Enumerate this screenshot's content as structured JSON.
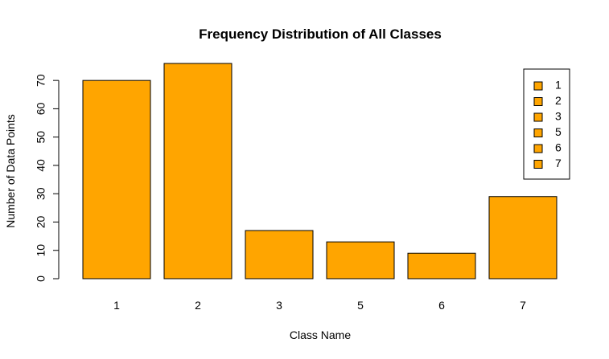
{
  "chart_data": {
    "type": "bar",
    "title": "Frequency Distribution of All Classes",
    "xlabel": "Class Name",
    "ylabel": "Number of Data Points",
    "categories": [
      "1",
      "2",
      "3",
      "5",
      "6",
      "7"
    ],
    "values": [
      70,
      76,
      17,
      13,
      9,
      29
    ],
    "ylim": [
      0,
      76
    ],
    "yticks": [
      0,
      10,
      20,
      30,
      40,
      50,
      60,
      70
    ],
    "grid": false,
    "legend": {
      "position": "top-right",
      "entries": [
        "1",
        "2",
        "3",
        "5",
        "6",
        "7"
      ]
    },
    "colors": {
      "bar_fill": "#FFA500",
      "bar_stroke": "#000000"
    }
  }
}
